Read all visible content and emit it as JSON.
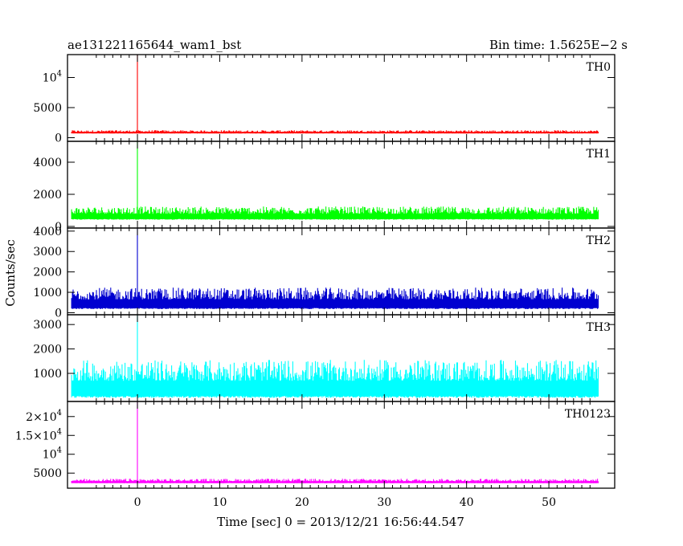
{
  "chart_data": {
    "type": "line",
    "title": "ae131221165644_wam1_bst",
    "title_right": "Bin time: 1.5625E−2 s",
    "xlabel": "Time [sec] 0 = 2013/12/21 16:56:44.547",
    "ylabel": "Counts/sec",
    "xlim": [
      -8.5,
      58
    ],
    "x_ticks": [
      0,
      10,
      20,
      30,
      40,
      50
    ],
    "x_tick_labels": [
      "0",
      "10",
      "20",
      "30",
      "40",
      "50"
    ],
    "data_x_range": [
      -8,
      56
    ],
    "bin_time_s": 0.015625,
    "grid": false,
    "panels": [
      {
        "name": "TH0",
        "color": "#ff0000",
        "ylim": [
          -600,
          13800
        ],
        "y_ticks": [
          {
            "value": 0,
            "label": "0"
          },
          {
            "value": 5000,
            "label": "5000"
          },
          {
            "value": 10000,
            "label": "10",
            "sup": "4"
          }
        ],
        "baseline": 700,
        "noise": 550,
        "spike": {
          "x": 0,
          "y": 13800
        }
      },
      {
        "name": "TH1",
        "color": "#00ff00",
        "ylim": [
          -100,
          5300
        ],
        "y_ticks": [
          {
            "value": 0,
            "label": "0"
          },
          {
            "value": 2000,
            "label": "2000"
          },
          {
            "value": 4000,
            "label": "4000"
          }
        ],
        "baseline": 420,
        "noise": 820,
        "spike": {
          "x": 0,
          "y": 5300
        }
      },
      {
        "name": "TH2",
        "color": "#0000d0",
        "ylim": [
          -100,
          4150
        ],
        "y_ticks": [
          {
            "value": 0,
            "label": "0"
          },
          {
            "value": 1000,
            "label": "1000"
          },
          {
            "value": 2000,
            "label": "2000"
          },
          {
            "value": 3000,
            "label": "3000"
          },
          {
            "value": 4000,
            "label": "4000"
          }
        ],
        "baseline": 180,
        "noise": 1050,
        "spike": {
          "x": 0,
          "y": 4150
        }
      },
      {
        "name": "TH3",
        "color": "#00ffff",
        "ylim": [
          -150,
          3400
        ],
        "y_ticks": [
          {
            "value": 1000,
            "label": "1000"
          },
          {
            "value": 2000,
            "label": "2000"
          },
          {
            "value": 3000,
            "label": "3000"
          }
        ],
        "baseline": 0,
        "noise": 1550,
        "spike": {
          "x": 0,
          "y": 3400
        }
      },
      {
        "name": "TH0123",
        "color": "#ff00ff",
        "ylim": [
          1000,
          24000
        ],
        "y_ticks": [
          {
            "value": 5000,
            "label": "5000"
          },
          {
            "value": 10000,
            "label": "10",
            "sup": "4"
          },
          {
            "value": 15000,
            "label": "1.5×10",
            "sup": "4"
          },
          {
            "value": 20000,
            "label": "2×10",
            "sup": "4"
          }
        ],
        "baseline": 2300,
        "noise": 1200,
        "spike": {
          "x": 0,
          "y": 24000
        }
      }
    ]
  }
}
